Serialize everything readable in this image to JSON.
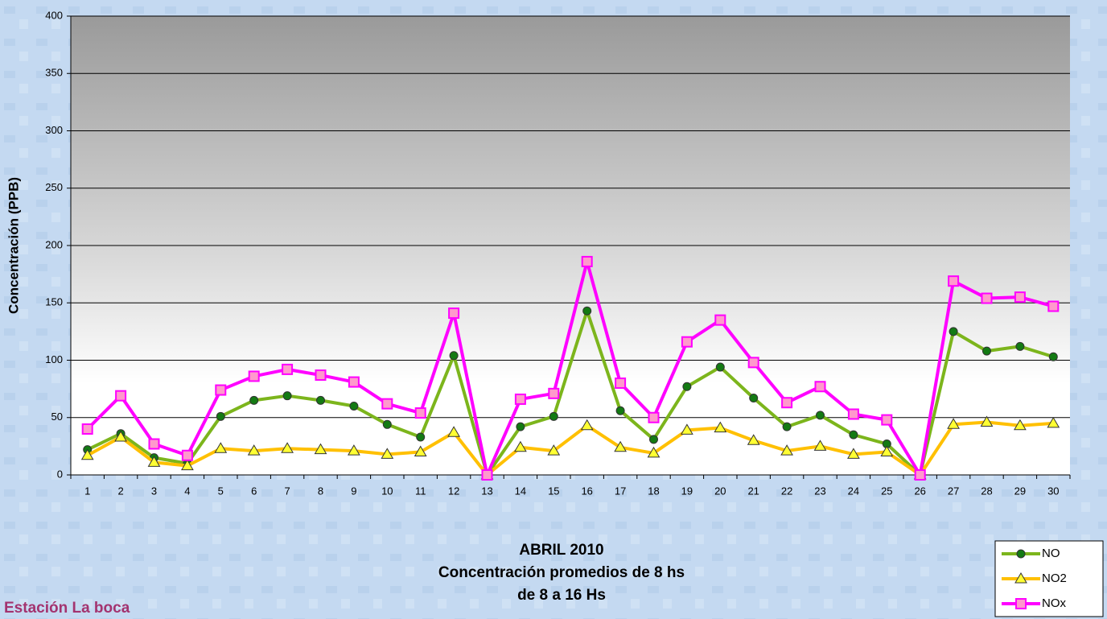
{
  "chart_data": {
    "type": "line",
    "title": [
      "ABRIL 2010",
      "Concentración promedios de 8 hs",
      "de 8 a 16 Hs"
    ],
    "subtitle": "Estación La boca",
    "y_label": "Concentración (PPB)",
    "categories": [
      "1",
      "2",
      "3",
      "4",
      "5",
      "6",
      "7",
      "8",
      "9",
      "10",
      "11",
      "12",
      "13",
      "14",
      "15",
      "16",
      "17",
      "18",
      "19",
      "20",
      "21",
      "22",
      "23",
      "24",
      "25",
      "26",
      "27",
      "28",
      "29",
      "30"
    ],
    "series": [
      {
        "name": "NO",
        "color": "#7cb51c",
        "marker": "circle",
        "marker_color": "#137a13",
        "values": [
          22,
          36,
          15,
          10,
          51,
          65,
          69,
          65,
          60,
          44,
          33,
          104,
          0,
          42,
          51,
          143,
          56,
          31,
          77,
          94,
          67,
          42,
          52,
          35,
          27,
          0,
          125,
          108,
          112,
          103
        ]
      },
      {
        "name": "NO2",
        "color": "#ffc000",
        "marker": "triangle",
        "marker_color": "#ffff33",
        "values": [
          17,
          33,
          11,
          8,
          23,
          21,
          23,
          22,
          21,
          18,
          20,
          37,
          0,
          24,
          21,
          43,
          24,
          19,
          39,
          41,
          30,
          21,
          25,
          18,
          20,
          0,
          44,
          46,
          43,
          45
        ]
      },
      {
        "name": "NOx",
        "color": "#ff00ff",
        "marker": "square",
        "marker_color": "#ff99cc",
        "values": [
          40,
          69,
          27,
          17,
          74,
          86,
          92,
          87,
          81,
          62,
          54,
          141,
          0,
          66,
          71,
          186,
          80,
          50,
          116,
          135,
          98,
          63,
          77,
          53,
          48,
          0,
          169,
          154,
          155,
          147
        ]
      }
    ],
    "ylim": [
      0,
      400
    ],
    "yticks": [
      0,
      50,
      100,
      150,
      200,
      250,
      300,
      350,
      400
    ],
    "grid": true,
    "legend": "bottom-right"
  }
}
